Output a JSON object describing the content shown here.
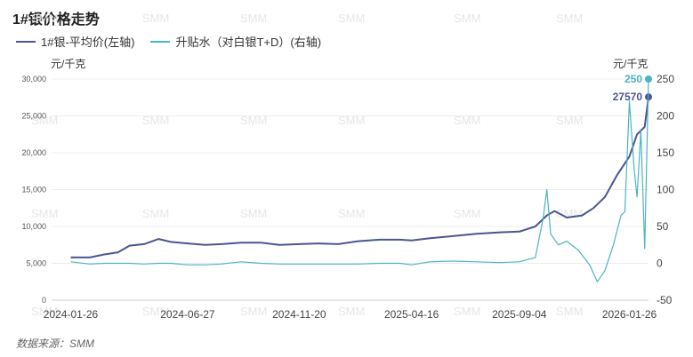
{
  "title": "1#银价格走势",
  "source": "数据来源：SMM",
  "watermark": "SMM",
  "chart_data": {
    "type": "line",
    "left_axis_unit": "元/千克",
    "right_axis_unit": "元/千克",
    "left_ylim": [
      0,
      30000
    ],
    "right_ylim": [
      -50,
      250
    ],
    "left_ticks": [
      "30,000",
      "25,000",
      "20,000",
      "15,000",
      "10,000",
      "5,000",
      "0"
    ],
    "right_ticks": [
      "250",
      "200",
      "150",
      "100",
      "50",
      "0",
      "-50"
    ],
    "x_ticks": [
      "2024-01-26",
      "2024-06-27",
      "2024-11-20",
      "2025-04-16",
      "2025-09-04",
      "2026-01-26"
    ],
    "grid": true,
    "legend_position": "top-left",
    "series": [
      {
        "name": "1#银-平均价(左轴)",
        "axis": "left",
        "color": "#4a5592",
        "last_label": "27570",
        "x": [
          "2024-01-26",
          "2024-02-20",
          "2024-03-10",
          "2024-03-28",
          "2024-04-12",
          "2024-05-01",
          "2024-05-20",
          "2024-06-05",
          "2024-06-27",
          "2024-07-20",
          "2024-08-10",
          "2024-09-05",
          "2024-10-01",
          "2024-10-25",
          "2024-11-20",
          "2024-12-15",
          "2025-01-10",
          "2025-02-05",
          "2025-03-05",
          "2025-04-01",
          "2025-04-16",
          "2025-05-10",
          "2025-06-10",
          "2025-07-10",
          "2025-08-10",
          "2025-09-04",
          "2025-09-25",
          "2025-10-10",
          "2025-10-20",
          "2025-11-05",
          "2025-11-25",
          "2025-12-10",
          "2025-12-25",
          "2026-01-10",
          "2026-01-26",
          "2026-02-05",
          "2026-02-15",
          "2026-02-20"
        ],
        "values": [
          5800,
          5800,
          6200,
          6500,
          7400,
          7600,
          8300,
          7900,
          7700,
          7500,
          7600,
          7800,
          7800,
          7500,
          7600,
          7700,
          7600,
          8000,
          8200,
          8200,
          8100,
          8400,
          8700,
          9000,
          9200,
          9300,
          10000,
          11500,
          12100,
          11200,
          11500,
          12500,
          14000,
          17000,
          19500,
          22500,
          23500,
          27570
        ]
      },
      {
        "name": "升贴水（对白银T+D）(右轴)",
        "axis": "right",
        "color": "#4ab4c5",
        "last_label": "250",
        "x": [
          "2024-01-26",
          "2024-02-20",
          "2024-03-10",
          "2024-04-12",
          "2024-05-01",
          "2024-05-20",
          "2024-06-05",
          "2024-06-27",
          "2024-07-20",
          "2024-08-10",
          "2024-09-05",
          "2024-10-01",
          "2024-10-25",
          "2024-11-20",
          "2024-12-15",
          "2025-01-10",
          "2025-02-05",
          "2025-03-05",
          "2025-04-01",
          "2025-04-16",
          "2025-05-10",
          "2025-06-10",
          "2025-07-10",
          "2025-08-10",
          "2025-09-04",
          "2025-09-25",
          "2025-10-05",
          "2025-10-10",
          "2025-10-15",
          "2025-10-25",
          "2025-11-05",
          "2025-11-20",
          "2025-12-05",
          "2025-12-15",
          "2025-12-25",
          "2026-01-05",
          "2026-01-15",
          "2026-01-20",
          "2026-01-26",
          "2026-02-01",
          "2026-02-05",
          "2026-02-10",
          "2026-02-15",
          "2026-02-20"
        ],
        "values": [
          2,
          -1,
          0,
          0,
          -1,
          0,
          0,
          -2,
          -2,
          -1,
          2,
          0,
          -1,
          -1,
          -1,
          -1,
          -1,
          0,
          0,
          -2,
          2,
          3,
          2,
          1,
          2,
          8,
          60,
          100,
          40,
          25,
          30,
          18,
          -2,
          -25,
          -10,
          25,
          65,
          70,
          220,
          130,
          90,
          180,
          20,
          250
        ]
      }
    ]
  }
}
